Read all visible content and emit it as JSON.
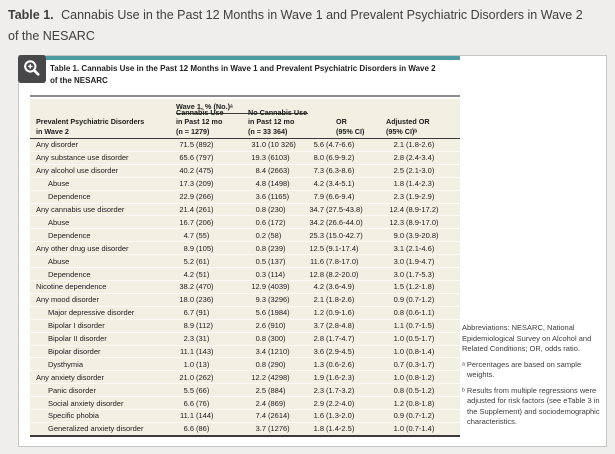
{
  "page": {
    "heading_prefix": "Table 1.",
    "heading_rest": "Cannabis Use in the Past 12 Months in Wave 1 and Prevalent Psychiatric Disorders in Wave 2 of the NESARC"
  },
  "card": {
    "accent_color": "#4f9ba3",
    "title_line1": "Table 1. Cannabis Use in the Past 12 Months in Wave 1 and Prevalent Psychiatric Disorders in Wave 2",
    "title_line2": "of the NESARC"
  },
  "zoom_button": {
    "icon": "magnifier-plus-icon"
  },
  "table": {
    "group_header": "Wave 1, % (No.)ᵃ",
    "columns": [
      [
        "Prevalent Psychiatric Disorders",
        "in Wave 2"
      ],
      [
        "Cannabis Use",
        "in Past 12 mo",
        "(n = 1279)"
      ],
      [
        "No Cannabis Use",
        "in Past 12 mo",
        "(n = 33 364)"
      ],
      [
        "OR",
        "(95% CI)"
      ],
      [
        "Adjusted OR",
        "(95% CI)ᵇ"
      ]
    ],
    "rows": [
      {
        "label": "Any disorder",
        "indent": 0,
        "cells": [
          "71.5 (892)",
          "31.0 (10 326)",
          "5.6 (4.7-6.6)",
          "2.1 (1.8-2.6)"
        ]
      },
      {
        "label": "Any substance use disorder",
        "indent": 0,
        "cells": [
          "65.6 (797)",
          "19.3 (6103)",
          "8.0 (6.9-9.2)",
          "2.8 (2.4-3.4)"
        ]
      },
      {
        "label": "Any alcohol use disorder",
        "indent": 0,
        "cells": [
          "40.2 (475)",
          "8.4 (2663)",
          "7.3 (6.3-8.6)",
          "2.5 (2.1-3.0)"
        ]
      },
      {
        "label": "Abuse",
        "indent": 1,
        "cells": [
          "17.3 (209)",
          "4.8 (1498)",
          "4.2 (3.4-5.1)",
          "1.8 (1.4-2.3)"
        ]
      },
      {
        "label": "Dependence",
        "indent": 1,
        "cells": [
          "22.9 (266)",
          "3.6 (1165)",
          "7.9 (6.6-9.4)",
          "2.3 (1.9-2.9)"
        ]
      },
      {
        "label": "Any cannabis use disorder",
        "indent": 0,
        "cells": [
          "21.4 (261)",
          "0.8 (230)",
          "34.7 (27.5-43.8)",
          "12.4 (8.9-17.2)"
        ]
      },
      {
        "label": "Abuse",
        "indent": 1,
        "cells": [
          "16.7 (206)",
          "0.6 (172)",
          "34.2 (26.6-44.0)",
          "12.3 (8.9-17.0)"
        ]
      },
      {
        "label": "Dependence",
        "indent": 1,
        "cells": [
          "4.7 (55)",
          "0.2 (58)",
          "25.3 (15.0-42.7)",
          "9.0 (3.9-20.8)"
        ]
      },
      {
        "label": "Any other drug use disorder",
        "indent": 0,
        "cells": [
          "8.9 (105)",
          "0.8 (239)",
          "12.5 (9.1-17.4)",
          "3.1 (2.1-4.6)"
        ]
      },
      {
        "label": "Abuse",
        "indent": 1,
        "cells": [
          "5.2 (61)",
          "0.5 (137)",
          "11.6 (7.8-17.0)",
          "3.0 (1.9-4.7)"
        ]
      },
      {
        "label": "Dependence",
        "indent": 1,
        "cells": [
          "4.2 (51)",
          "0.3 (114)",
          "12.8 (8.2-20.0)",
          "3.0 (1.7-5.3)"
        ]
      },
      {
        "label": "Nicotine dependence",
        "indent": 0,
        "cells": [
          "38.2 (470)",
          "12.9 (4039)",
          "4.2 (3.6-4.9)",
          "1.5 (1.2-1.8)"
        ]
      },
      {
        "label": "Any mood disorder",
        "indent": 0,
        "cells": [
          "18.0 (236)",
          "9.3 (3296)",
          "2.1 (1.8-2.6)",
          "0.9 (0.7-1.2)"
        ]
      },
      {
        "label": "Major depressive disorder",
        "indent": 1,
        "cells": [
          "6.7 (91)",
          "5.6 (1984)",
          "1.2 (0.9-1.6)",
          "0.8 (0.6-1.1)"
        ]
      },
      {
        "label": "Bipolar I disorder",
        "indent": 1,
        "cells": [
          "8.9 (112)",
          "2.6 (910)",
          "3.7 (2.8-4.8)",
          "1.1 (0.7-1.5)"
        ]
      },
      {
        "label": "Bipolar II disorder",
        "indent": 1,
        "cells": [
          "2.3 (31)",
          "0.8 (300)",
          "2.8 (1.7-4.7)",
          "1.0 (0.5-1.7)"
        ]
      },
      {
        "label": "Bipolar disorder",
        "indent": 1,
        "cells": [
          "11.1 (143)",
          "3.4 (1210)",
          "3.6 (2.9-4.5)",
          "1.0 (0.8-1.4)"
        ]
      },
      {
        "label": "Dysthymia",
        "indent": 1,
        "cells": [
          "1.0 (13)",
          "0.8 (290)",
          "1.3 (0.6-2.6)",
          "0.7 (0.3-1.7)"
        ]
      },
      {
        "label": "Any anxiety disorder",
        "indent": 0,
        "cells": [
          "21.0 (262)",
          "12.2 (4298)",
          "1.9 (1.6-2.3)",
          "1.0 (0.8-1.2)"
        ]
      },
      {
        "label": "Panic disorder",
        "indent": 1,
        "cells": [
          "5.5 (66)",
          "2.5 (884)",
          "2.3 (1.7-3.2)",
          "0.8 (0.5-1.2)"
        ]
      },
      {
        "label": "Social anxiety disorder",
        "indent": 1,
        "cells": [
          "6.6 (76)",
          "2.4 (869)",
          "2.9 (2.2-4.0)",
          "1.2 (0.8-1.8)"
        ]
      },
      {
        "label": "Specific phobia",
        "indent": 1,
        "cells": [
          "11.1 (144)",
          "7.4 (2614)",
          "1.6 (1.3-2.0)",
          "0.9 (0.7-1.2)"
        ]
      },
      {
        "label": "Generalized anxiety disorder",
        "indent": 1,
        "cells": [
          "6.6 (86)",
          "3.7 (1276)",
          "1.8 (1.4-2.5)",
          "1.0 (0.7-1.4)"
        ]
      }
    ]
  },
  "footnotes": [
    "Abbreviations: NESARC, National Epidemiological Survey on Alcohol and Related Conditions; OR, odds ratio.",
    "ᵃ Percentages are based on sample weights.",
    "ᵇ Results from multiple regressions were adjusted for risk factors (see eTable 3 in the Supplement) and sociodemographic characteristics."
  ]
}
